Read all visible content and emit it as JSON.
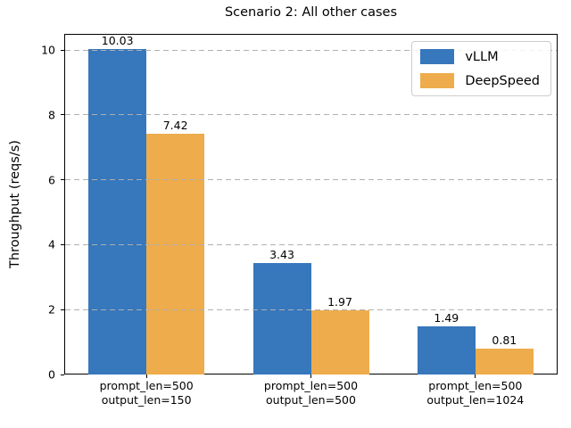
{
  "chart_data": {
    "type": "bar",
    "title": "Scenario 2: All other cases",
    "xlabel": "",
    "ylabel": "Throughput (reqs/s)",
    "categories": [
      "prompt_len=500\noutput_len=150",
      "prompt_len=500\noutput_len=500",
      "prompt_len=500\noutput_len=1024"
    ],
    "series": [
      {
        "name": "vLLM",
        "color": "#3777bc",
        "values": [
          10.03,
          3.43,
          1.49
        ]
      },
      {
        "name": "DeepSpeed",
        "color": "#eeac4c",
        "values": [
          7.42,
          1.97,
          0.81
        ]
      }
    ],
    "bar_value_labels": [
      [
        "10.03",
        "3.43",
        "1.49"
      ],
      [
        "7.42",
        "1.97",
        "0.81"
      ]
    ],
    "yticks": [
      "0",
      "2",
      "4",
      "6",
      "8",
      "10"
    ],
    "ylim": [
      0,
      10.5
    ],
    "grid": "horizontal dashed, drawn above bars",
    "grid_color": "#b0b0b0",
    "legend_position": "upper right",
    "background_color": "#ffffff",
    "spine_color": "#000000"
  }
}
